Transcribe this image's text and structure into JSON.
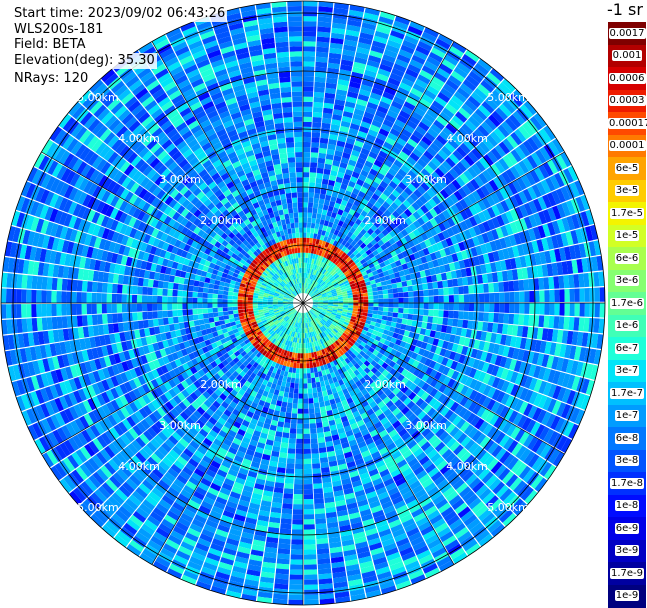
{
  "header": {
    "start_time": "Start time: 2023/09/02 06:43:26",
    "instrument": "WLS200s-181",
    "field": "Field: BETA",
    "elevation": "Elevation(deg): 35.30",
    "nrays": "NRays: 120"
  },
  "colorbar": {
    "unit": "-1 sr",
    "labels": [
      "0.0017",
      "0.001",
      "0.0006",
      "0.0003",
      "0.00017",
      "0.0001",
      "6e-5",
      "3e-5",
      "1.7e-5",
      "1e-5",
      "6e-6",
      "3e-6",
      "1.7e-6",
      "1e-6",
      "6e-7",
      "3e-7",
      "1.7e-7",
      "1e-7",
      "6e-8",
      "3e-8",
      "1.7e-8",
      "1e-8",
      "6e-9",
      "3e-9",
      "1.7e-9",
      "1e-9"
    ],
    "colors": [
      "#7f0000",
      "#b20000",
      "#d60000",
      "#ee1c00",
      "#ff4a00",
      "#ff7a00",
      "#ffa400",
      "#ffcc00",
      "#f4f400",
      "#d2ff25",
      "#a9ff4d",
      "#86ff71",
      "#63ff94",
      "#40ffb7",
      "#1fffd9",
      "#00e4f8",
      "#00c0ff",
      "#009cff",
      "#0078ff",
      "#0054ff",
      "#0030ff",
      "#000cff",
      "#0000e8",
      "#0000c4",
      "#0000a0",
      "#00007f"
    ]
  },
  "chart_data": {
    "type": "heatmap",
    "projection": "polar PPI",
    "field": "BETA",
    "elevation_deg": 35.3,
    "n_rays": 120,
    "range_rings_km": [
      1.0,
      2.0,
      3.0,
      4.0,
      5.0
    ],
    "ring_labels": [
      "2.00km",
      "3.00km",
      "4.00km",
      "5.00km"
    ],
    "color_scale": "log",
    "value_range": [
      1e-09,
      0.0017
    ],
    "features": {
      "dominant_background_value": 3e-08,
      "high_backscatter_ring_range_km": 1.0,
      "high_backscatter_ring_value": 0.0003
    }
  }
}
